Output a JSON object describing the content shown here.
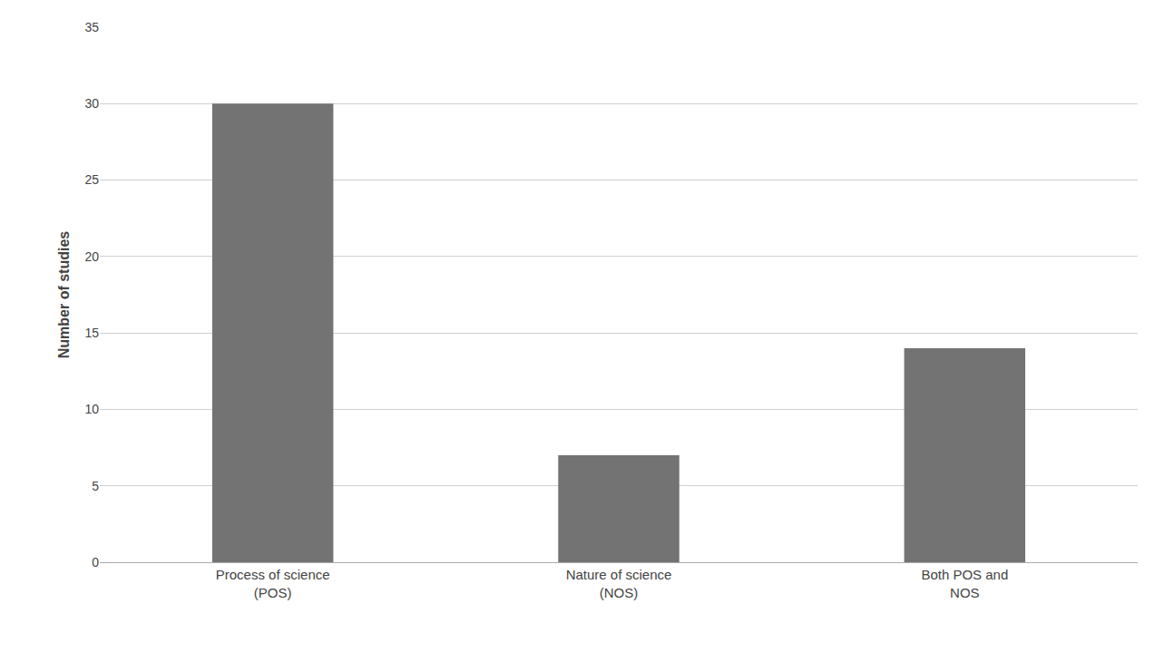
{
  "chart_data": {
    "type": "bar",
    "categories": [
      "Process of science\n(POS)",
      "Nature of science\n(NOS)",
      "Both POS and\nNOS"
    ],
    "values": [
      30,
      7,
      14
    ],
    "color": "#737373",
    "ylabel": "Number of studies",
    "ylim": [
      0,
      35
    ],
    "yticks": [
      0,
      5,
      10,
      15,
      20,
      25,
      30,
      35
    ],
    "grid": true
  }
}
